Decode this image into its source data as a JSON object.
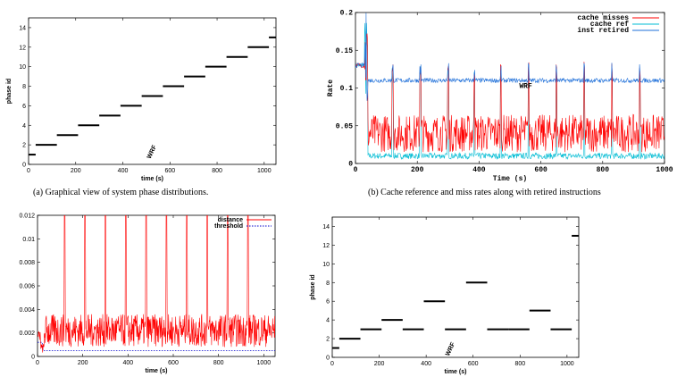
{
  "captions": {
    "a": "(a) Graphical view of system phase distributions.",
    "b": "(b) Cache reference and miss rates along with retired instructions"
  },
  "chart_data": [
    {
      "id": "a",
      "type": "line",
      "xlabel": "time (s)",
      "ylabel": "phase id",
      "annotation": "WRF",
      "xlim": [
        0,
        1050
      ],
      "ylim": [
        0,
        15
      ],
      "xticks": [
        "0",
        "200",
        "400",
        "600",
        "800",
        "1000"
      ],
      "yticks": [
        "0",
        "2",
        "4",
        "6",
        "8",
        "10",
        "12",
        "14"
      ],
      "segments": [
        {
          "x": [
            0,
            30
          ],
          "y": 1
        },
        {
          "x": [
            30,
            120
          ],
          "y": 2
        },
        {
          "x": [
            120,
            210
          ],
          "y": 3
        },
        {
          "x": [
            210,
            300
          ],
          "y": 4
        },
        {
          "x": [
            300,
            390
          ],
          "y": 5
        },
        {
          "x": [
            390,
            480
          ],
          "y": 6
        },
        {
          "x": [
            480,
            570
          ],
          "y": 7
        },
        {
          "x": [
            570,
            660
          ],
          "y": 8
        },
        {
          "x": [
            660,
            750
          ],
          "y": 9
        },
        {
          "x": [
            750,
            840
          ],
          "y": 10
        },
        {
          "x": [
            840,
            930
          ],
          "y": 11
        },
        {
          "x": [
            930,
            1020
          ],
          "y": 12
        },
        {
          "x": [
            1020,
            1050
          ],
          "y": 13
        }
      ]
    },
    {
      "id": "b",
      "type": "line",
      "xlabel": "Time (s)",
      "ylabel": "Rate",
      "annotation": "WRF",
      "xlim": [
        0,
        1000
      ],
      "ylim": [
        0,
        0.2
      ],
      "xticks": [
        "0",
        "200",
        "400",
        "600",
        "800",
        "1000"
      ],
      "yticks": [
        "0",
        "0.05",
        "0.1",
        "0.15",
        "0.2"
      ],
      "spike_times": [
        120,
        210,
        300,
        385,
        470,
        560,
        650,
        740,
        830,
        920
      ],
      "series": [
        {
          "name": "cache misses",
          "color": "#ff0000",
          "baseline": 0.04,
          "spike": 0.135
        },
        {
          "name": "cache ref",
          "color": "#00bcd4",
          "baseline": 0.01,
          "spike": 0.13
        },
        {
          "name": "inst retired",
          "color": "#1e6fd9",
          "baseline": 0.11,
          "spike": 0.135
        }
      ]
    },
    {
      "id": "c",
      "type": "line",
      "xlabel": "time (s)",
      "ylabel": "",
      "xlim": [
        0,
        1050
      ],
      "ylim": [
        0,
        0.012
      ],
      "xticks": [
        "0",
        "200",
        "400",
        "600",
        "800",
        "1000"
      ],
      "yticks": [
        "0",
        "0.002",
        "0.004",
        "0.006",
        "0.008",
        "0.01",
        "0.012"
      ],
      "spike_times": [
        120,
        210,
        300,
        390,
        480,
        570,
        660,
        750,
        840,
        930
      ],
      "series": [
        {
          "name": "distance",
          "color": "#ff0000",
          "baseline": 0.0022,
          "spike": 0.012
        },
        {
          "name": "threshold",
          "color": "#0000cc",
          "value": 0.0005
        }
      ]
    },
    {
      "id": "d",
      "type": "line",
      "xlabel": "time (s)",
      "ylabel": "phase id",
      "annotation": "WRF",
      "xlim": [
        0,
        1050
      ],
      "ylim": [
        0,
        15
      ],
      "xticks": [
        "0",
        "200",
        "400",
        "600",
        "800",
        "1000"
      ],
      "yticks": [
        "0",
        "2",
        "4",
        "6",
        "8",
        "10",
        "12",
        "14"
      ],
      "segments": [
        {
          "x": [
            0,
            30
          ],
          "y": 1
        },
        {
          "x": [
            30,
            120
          ],
          "y": 2
        },
        {
          "x": [
            120,
            210
          ],
          "y": 3
        },
        {
          "x": [
            210,
            300
          ],
          "y": 4
        },
        {
          "x": [
            300,
            390
          ],
          "y": 3
        },
        {
          "x": [
            390,
            480
          ],
          "y": 6
        },
        {
          "x": [
            480,
            570
          ],
          "y": 3
        },
        {
          "x": [
            570,
            660
          ],
          "y": 8
        },
        {
          "x": [
            660,
            750
          ],
          "y": 3
        },
        {
          "x": [
            750,
            840
          ],
          "y": 3
        },
        {
          "x": [
            840,
            930
          ],
          "y": 5
        },
        {
          "x": [
            930,
            1020
          ],
          "y": 3
        },
        {
          "x": [
            1020,
            1050
          ],
          "y": 13
        }
      ]
    }
  ]
}
